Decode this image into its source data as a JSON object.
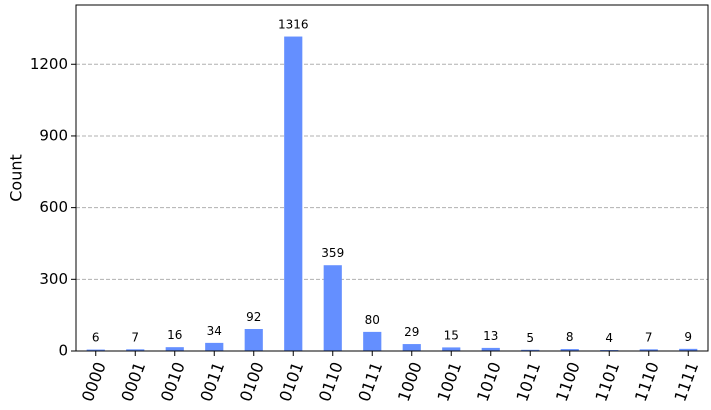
{
  "chart_data": {
    "type": "bar",
    "ylabel": "Count",
    "categories": [
      "0000",
      "0001",
      "0010",
      "0011",
      "0100",
      "0101",
      "0110",
      "0111",
      "1000",
      "1001",
      "1010",
      "1011",
      "1100",
      "1101",
      "1110",
      "1111"
    ],
    "values": [
      6,
      7,
      16,
      34,
      92,
      1316,
      359,
      80,
      29,
      15,
      13,
      5,
      8,
      4,
      7,
      9
    ],
    "color": "#648fff",
    "ylim": [
      0,
      1448
    ],
    "yticks": [
      0,
      300,
      600,
      900,
      1200
    ],
    "grid": true
  }
}
